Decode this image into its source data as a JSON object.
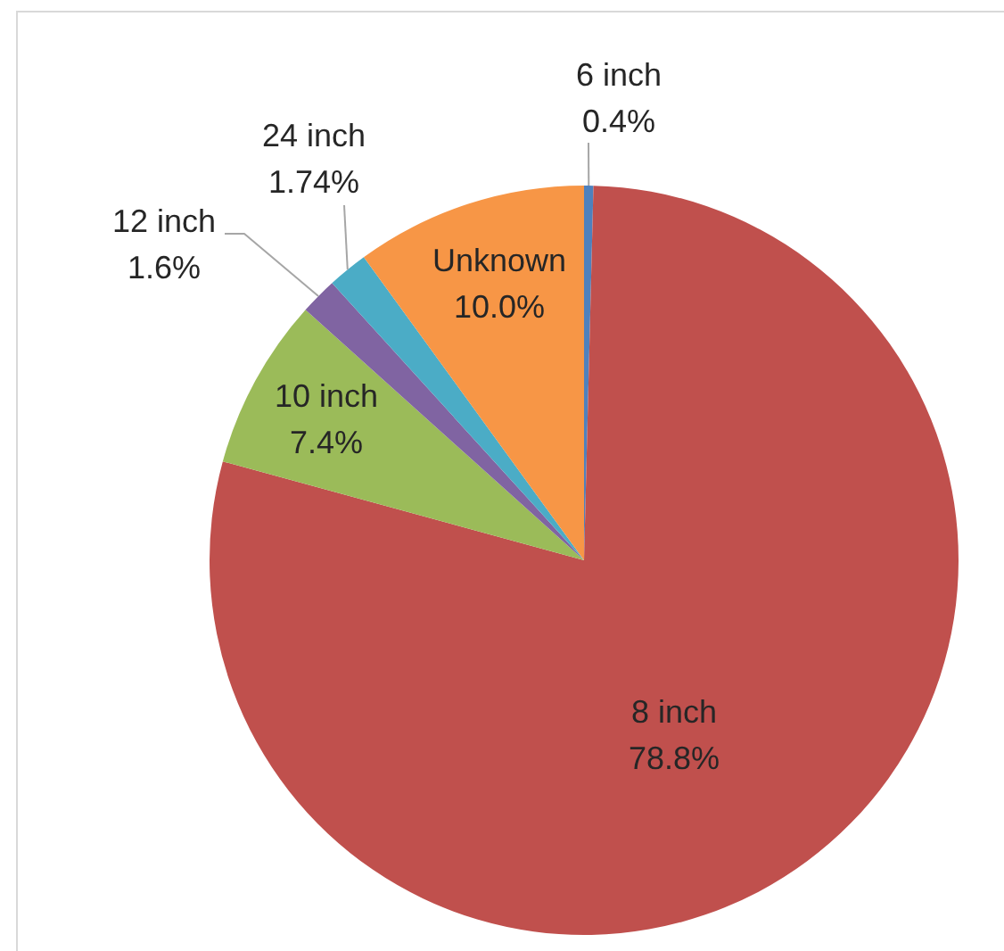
{
  "chart_data": {
    "type": "pie",
    "categories": [
      "6 inch",
      "8 inch",
      "10 inch",
      "12 inch",
      "24 inch",
      "Unknown"
    ],
    "values": [
      0.4,
      78.8,
      7.4,
      1.6,
      1.74,
      10.0
    ],
    "colors": [
      "#4f81bd",
      "#c0504d",
      "#9bbb59",
      "#8064a2",
      "#4bacc6",
      "#f79646"
    ],
    "value_labels": [
      "0.4%",
      "78.8%",
      "7.4%",
      "1.6%",
      "1.74%",
      "10.0%"
    ]
  }
}
